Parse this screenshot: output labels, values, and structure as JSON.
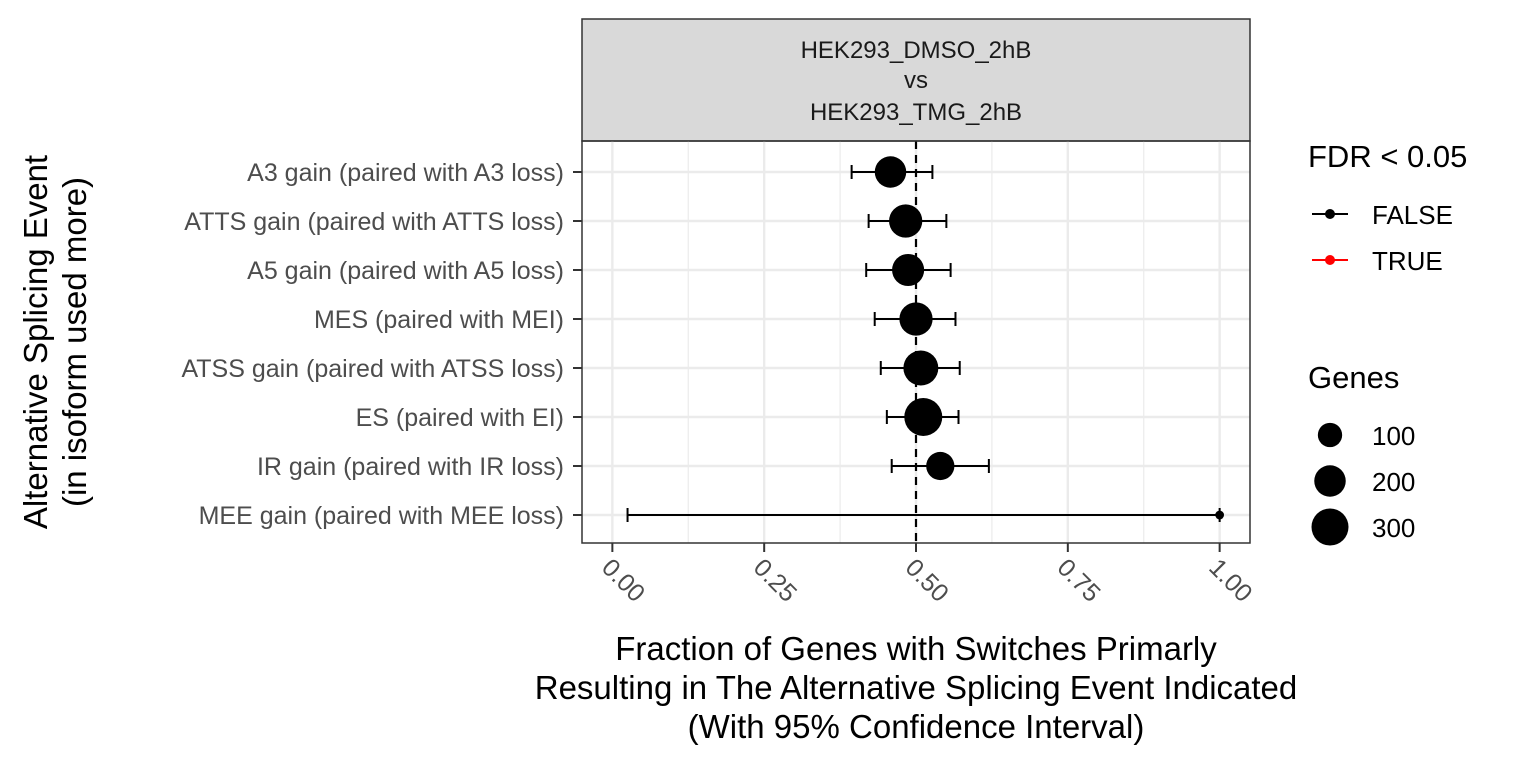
{
  "chart_data": {
    "type": "scatter",
    "title": "",
    "facet_label": [
      "HEK293_DMSO_2hB",
      "vs",
      "HEK293_TMG_2hB"
    ],
    "xlabel": [
      "Fraction of Genes with Switches Primarly",
      "Resulting in The Alternative Splicing Event Indicated",
      "(With 95% Confidence Interval)"
    ],
    "ylabel": [
      "Alternative Splicing Event",
      "(in isoform used more)"
    ],
    "xlim": [
      -0.05,
      1.05
    ],
    "x_ticks": [
      0,
      0.25,
      0.5,
      0.75,
      1
    ],
    "x_tick_labels": [
      "0.00",
      "0.25",
      "0.50",
      "0.75",
      "1.00"
    ],
    "reference_line_x": 0.5,
    "grid": true,
    "categories": [
      "A3 gain (paired with A3 loss)",
      "ATTS gain (paired with ATTS loss)",
      "A5 gain (paired with A5 loss)",
      "MES (paired with MEI)",
      "ATSS gain (paired with ATSS loss)",
      "ES (paired with EI)",
      "IR gain (paired with IR loss)",
      "MEE gain (paired with MEE loss)"
    ],
    "points": [
      {
        "x": 0.458,
        "ci": [
          0.394,
          0.527
        ],
        "genes": 200,
        "fdr": "FALSE"
      },
      {
        "x": 0.483,
        "ci": [
          0.422,
          0.55
        ],
        "genes": 230,
        "fdr": "FALSE"
      },
      {
        "x": 0.487,
        "ci": [
          0.418,
          0.557
        ],
        "genes": 210,
        "fdr": "FALSE"
      },
      {
        "x": 0.5,
        "ci": [
          0.432,
          0.565
        ],
        "genes": 230,
        "fdr": "FALSE"
      },
      {
        "x": 0.508,
        "ci": [
          0.442,
          0.572
        ],
        "genes": 260,
        "fdr": "FALSE"
      },
      {
        "x": 0.512,
        "ci": [
          0.452,
          0.57
        ],
        "genes": 320,
        "fdr": "FALSE"
      },
      {
        "x": 0.54,
        "ci": [
          0.46,
          0.62
        ],
        "genes": 150,
        "fdr": "FALSE"
      },
      {
        "x": 1.0,
        "ci": [
          0.025,
          1.0
        ],
        "genes": 1,
        "fdr": "FALSE"
      }
    ],
    "legend_fdr": {
      "title": "FDR < 0.05",
      "entries": [
        {
          "label": "FALSE",
          "color": "#000000"
        },
        {
          "label": "TRUE",
          "color": "#ff0000"
        }
      ]
    },
    "legend_size": {
      "title": "Genes",
      "entries": [
        {
          "label": "100",
          "value": 100
        },
        {
          "label": "200",
          "value": 200
        },
        {
          "label": "300",
          "value": 300
        }
      ]
    },
    "colors": {
      "panel_border": "#333333",
      "grid": "#ebebeb",
      "strip_fill": "#d9d9d9",
      "point": "#000000",
      "tick_label": "#4d4d4d"
    }
  }
}
